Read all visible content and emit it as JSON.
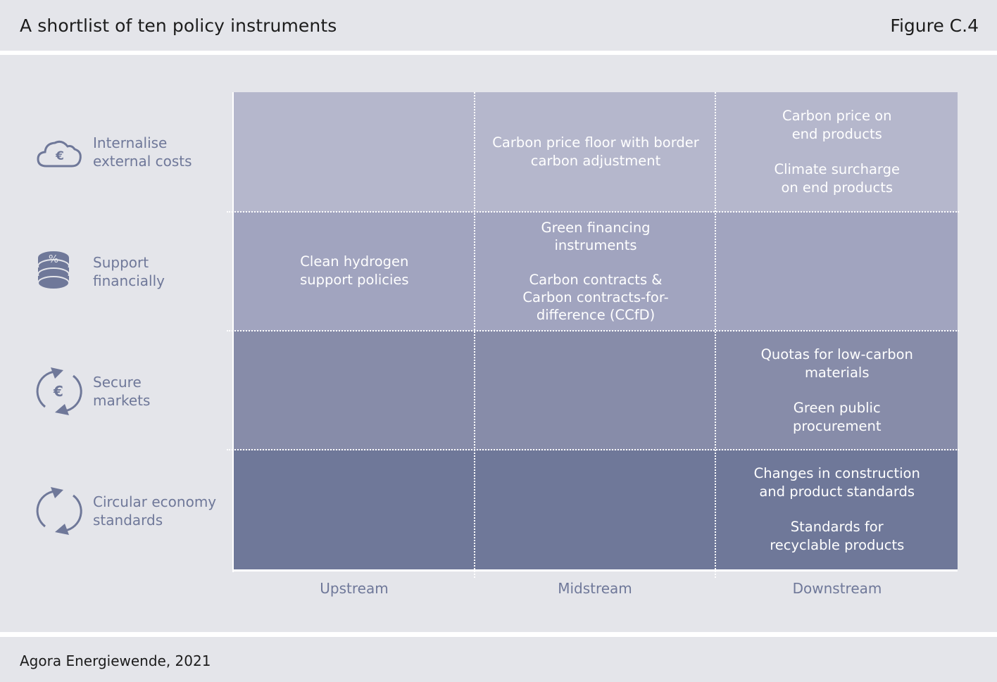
{
  "header": {
    "title": "A shortlist of ten policy instruments",
    "figure_number": "Figure C.4"
  },
  "footer": {
    "source": "Agora Energiewende, 2021"
  },
  "colors": {
    "row_1": "#b5b7cc",
    "row_2": "#a1a4bf",
    "row_3": "#878ca9",
    "row_4": "#6f7899",
    "label_text": "#6f7899",
    "background": "#e4e5ea"
  },
  "columns": [
    {
      "label": "Upstream"
    },
    {
      "label": "Midstream"
    },
    {
      "label": "Downstream"
    }
  ],
  "categories": [
    {
      "line1": "Internalise",
      "line2": "external costs",
      "icon": "cloud-euro-icon"
    },
    {
      "line1": "Support",
      "line2": "financially",
      "icon": "coin-stack-percent-icon"
    },
    {
      "line1": "Secure",
      "line2": "markets",
      "icon": "cycle-euro-icon"
    },
    {
      "line1": "Circular economy",
      "line2": "standards",
      "icon": "circular-arrows-icon"
    }
  ],
  "cells": {
    "internalise": {
      "midstream": [
        "Carbon price floor with border",
        "carbon adjustment"
      ],
      "downstream_1": [
        "Carbon price on",
        "end products"
      ],
      "downstream_2": [
        "Climate surcharge",
        "on end products"
      ]
    },
    "support": {
      "upstream": [
        "Clean hydrogen",
        "support policies"
      ],
      "midstream_1": [
        "Green financing",
        "instruments"
      ],
      "midstream_2": [
        "Carbon contracts &",
        "Carbon contracts-for-",
        "difference (CCfD)"
      ]
    },
    "secure": {
      "downstream_1": [
        "Quotas for low-carbon",
        "materials"
      ],
      "downstream_2": [
        "Green public",
        "procurement"
      ]
    },
    "circular": {
      "downstream_1": [
        "Changes in construction",
        "and product standards"
      ],
      "downstream_2": [
        "Standards for",
        "recyclable products"
      ]
    }
  }
}
